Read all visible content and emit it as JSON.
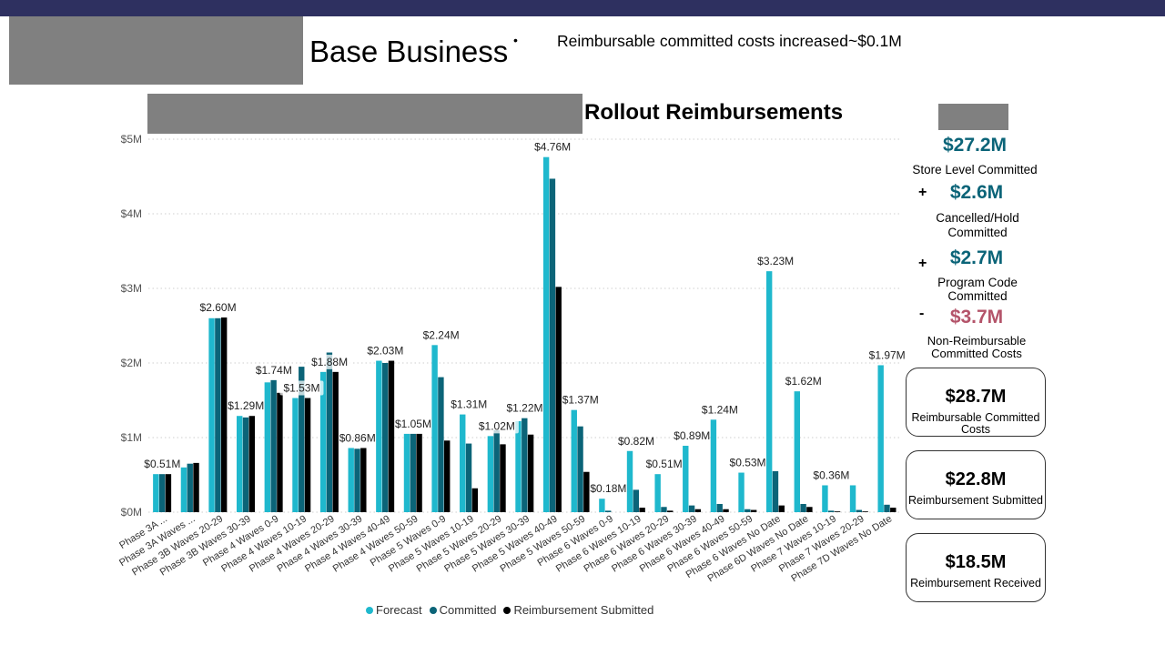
{
  "header": {
    "title": "Base Business",
    "bullet_symbol": "•",
    "bullet_text": "Reimbursable committed costs increased~$0.1M"
  },
  "colors": {
    "band": "#2e3060",
    "forecast": "#1fb8cd",
    "committed": "#0b6478",
    "submitted": "#000000",
    "kpi_positive": "#0b6478",
    "kpi_negative": "#b4546a"
  },
  "chart_data": {
    "type": "bar",
    "title": "Rollout Reimbursements",
    "xlabel": "",
    "ylabel": "",
    "ylim": [
      0,
      5
    ],
    "yticks": [
      "$0M",
      "$1M",
      "$2M",
      "$3M",
      "$4M",
      "$5M"
    ],
    "grid": true,
    "legend_position": "bottom",
    "categories": [
      "Phase 3A ...",
      "Phase 3A Waves ...",
      "Phase 3B Waves 20-29",
      "Phase 3B Waves 30-39",
      "Phase 4 Waves 0-9",
      "Phase 4 Waves 10-19",
      "Phase 4 Waves 20-29",
      "Phase 4 Waves 30-39",
      "Phase 4 Waves 40-49",
      "Phase 4 Waves 50-59",
      "Phase 5 Waves 0-9",
      "Phase 5 Waves 10-19",
      "Phase 5 Waves 20-29",
      "Phase 5 Waves 30-39",
      "Phase 5 Waves 40-49",
      "Phase 5 Waves 50-59",
      "Phase 6 Waves 0-9",
      "Phase 6 Waves 10-19",
      "Phase 6 Waves 20-29",
      "Phase 6 Waves 30-39",
      "Phase 6 Waves 40-49",
      "Phase 6 Waves 50-59",
      "Phase 6 Waves No Date",
      "Phase 6D Waves No Date",
      "Phase 7 Waves 10-19",
      "Phase 7 Waves 20-29",
      "Phase 7D Waves No Date"
    ],
    "series": [
      {
        "name": "Forecast",
        "values": [
          0.51,
          0.6,
          2.6,
          1.29,
          1.74,
          1.53,
          1.88,
          0.86,
          2.03,
          1.05,
          2.24,
          1.31,
          1.02,
          1.22,
          4.76,
          1.37,
          0.18,
          0.82,
          0.51,
          0.89,
          1.24,
          0.53,
          3.23,
          1.62,
          0.36,
          0.36,
          1.97
        ]
      },
      {
        "name": "Committed",
        "values": [
          0.51,
          0.65,
          2.6,
          1.27,
          1.77,
          1.95,
          2.14,
          0.85,
          2.0,
          1.05,
          1.81,
          0.92,
          1.1,
          1.26,
          4.47,
          1.15,
          0.02,
          0.3,
          0.07,
          0.09,
          0.11,
          0.04,
          0.55,
          0.11,
          0.02,
          0.03,
          0.1
        ]
      },
      {
        "name": "Reimbursement Submitted",
        "values": [
          0.51,
          0.66,
          2.61,
          1.29,
          1.6,
          1.53,
          1.88,
          0.86,
          2.03,
          1.05,
          0.96,
          0.32,
          0.91,
          1.04,
          3.02,
          0.54,
          0.0,
          0.06,
          0.02,
          0.04,
          0.04,
          0.03,
          0.09,
          0.07,
          0.01,
          0.01,
          0.06
        ]
      }
    ],
    "data_labels": [
      "$0.51M",
      "",
      "$2.60M",
      "$1.29M",
      "$1.74M",
      "$1.53M",
      "$1.88M",
      "$0.86M",
      "$2.03M",
      "$1.05M",
      "$2.24M",
      "$1.31M",
      "$1.02M",
      "$1.22M",
      "$4.76M",
      "$1.37M",
      "$0.18M",
      "$0.82M",
      "$0.51M",
      "$0.89M",
      "$1.24M",
      "$0.53M",
      "$3.23M",
      "$1.62M",
      "$0.36M",
      "",
      "$1.97M"
    ]
  },
  "kpis": [
    {
      "operator": "",
      "value": "$27.2M",
      "label": "Store Level Committed",
      "tone": "positive"
    },
    {
      "operator": "+",
      "value": "$2.6M",
      "label": "Cancelled/Hold Committed",
      "tone": "positive"
    },
    {
      "operator": "+",
      "value": "$2.7M",
      "label": "Program Code Committed",
      "tone": "positive"
    },
    {
      "operator": "-",
      "value": "$3.7M",
      "label": "Non-Reimbursable Committed Costs",
      "tone": "negative"
    }
  ],
  "cards": [
    {
      "value": "$28.7M",
      "label": "Reimbursable Committed Costs"
    },
    {
      "value": "$22.8M",
      "label": "Reimbursement Submitted"
    },
    {
      "value": "$18.5M",
      "label": "Reimbursement Received"
    }
  ]
}
